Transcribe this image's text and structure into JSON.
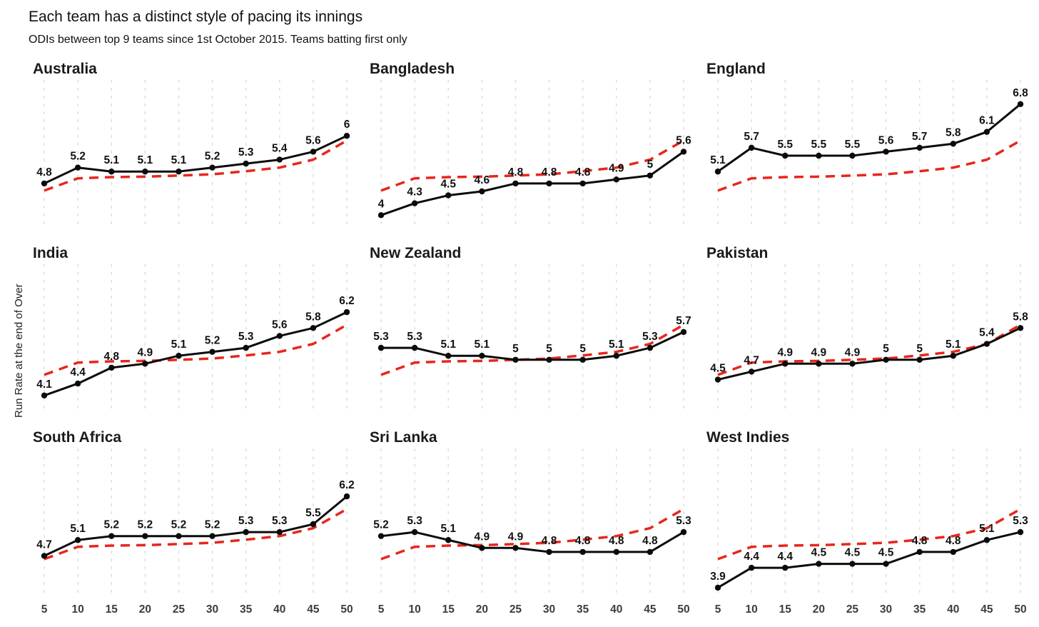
{
  "header": {
    "title": "Each team has a distinct style of pacing its innings",
    "subtitle": "ODIs between top 9 teams since 1st October 2015. Teams batting first only"
  },
  "chart_data": {
    "type": "line",
    "layout": "3x3 small multiples, shared axes, bottom row shows x tick labels only",
    "title": "Each team has a distinct style of pacing its innings",
    "subtitle": "ODIs between top 9 teams since 1st October 2015. Teams batting first only",
    "xlabel": "",
    "ylabel": "Run Rate at the end of Over",
    "x": [
      5,
      10,
      15,
      20,
      25,
      30,
      35,
      40,
      45,
      50
    ],
    "ylim": [
      3.7,
      7.3
    ],
    "grid": "vertical dashed light-gray gridlines at each x tick, no horizontal gridlines",
    "legend_position": "none",
    "reference_series": {
      "name": "all-team-average",
      "style": "red dashed, repeated in every panel",
      "values": [
        4.62,
        4.93,
        4.96,
        4.97,
        5.0,
        5.03,
        5.11,
        5.2,
        5.4,
        5.88
      ]
    },
    "panels": [
      {
        "team": "Australia",
        "values": [
          4.8,
          5.2,
          5.1,
          5.1,
          5.1,
          5.2,
          5.3,
          5.4,
          5.6,
          6
        ]
      },
      {
        "team": "Bangladesh",
        "values": [
          4,
          4.3,
          4.5,
          4.6,
          4.8,
          4.8,
          4.8,
          4.9,
          5,
          5.6
        ]
      },
      {
        "team": "England",
        "values": [
          5.1,
          5.7,
          5.5,
          5.5,
          5.5,
          5.6,
          5.7,
          5.8,
          6.1,
          6.8
        ]
      },
      {
        "team": "India",
        "values": [
          4.1,
          4.4,
          4.8,
          4.9,
          5.1,
          5.2,
          5.3,
          5.6,
          5.8,
          6.2
        ]
      },
      {
        "team": "New Zealand",
        "values": [
          5.3,
          5.3,
          5.1,
          5.1,
          5,
          5,
          5,
          5.1,
          5.3,
          5.7
        ]
      },
      {
        "team": "Pakistan",
        "values": [
          4.5,
          4.7,
          4.9,
          4.9,
          4.9,
          5,
          5,
          5.1,
          5.4,
          5.8
        ]
      },
      {
        "team": "South Africa",
        "values": [
          4.7,
          5.1,
          5.2,
          5.2,
          5.2,
          5.2,
          5.3,
          5.3,
          5.5,
          6.2
        ]
      },
      {
        "team": "Sri Lanka",
        "values": [
          5.2,
          5.3,
          5.1,
          4.9,
          4.9,
          4.8,
          4.8,
          4.8,
          4.8,
          5.3
        ]
      },
      {
        "team": "West Indies",
        "values": [
          3.9,
          4.4,
          4.4,
          4.5,
          4.5,
          4.5,
          4.8,
          4.8,
          5.1,
          5.3
        ]
      }
    ],
    "colors": {
      "team_line": "#0b0b0b",
      "point": "#0b0b0b",
      "average_line": "#e8261b",
      "gridline": "#dcdcdc",
      "tick_label": "#3c3c3c",
      "background": "#ffffff"
    }
  }
}
